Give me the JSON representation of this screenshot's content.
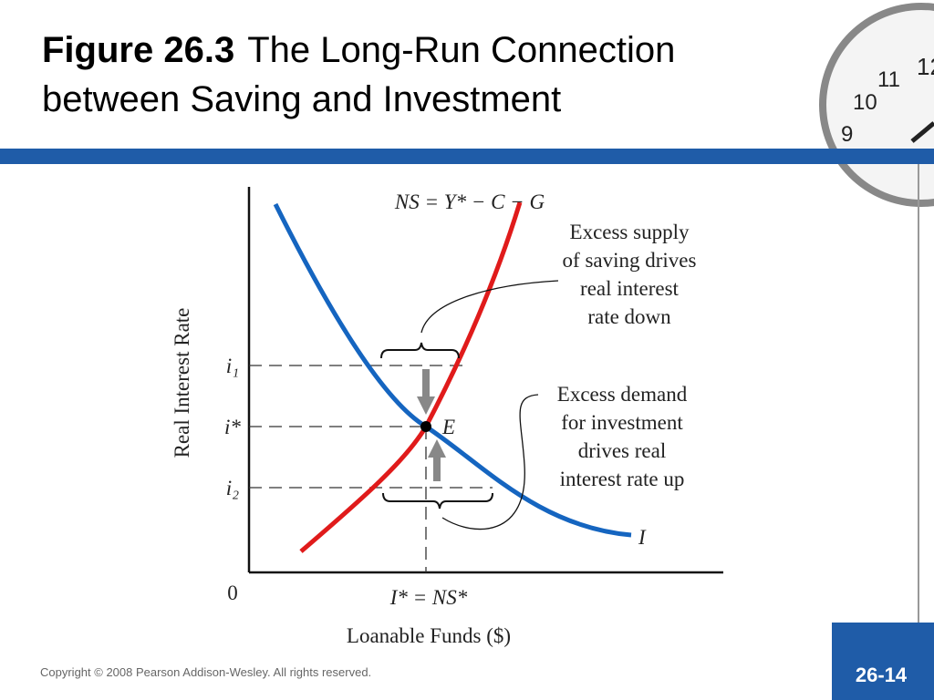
{
  "header": {
    "title_bold": "Figure 26.3",
    "title_line1": "The Long-Run Connection",
    "title_line2": "between Saving and Investment"
  },
  "diagram": {
    "y_axis_label": "Real Interest Rate",
    "x_axis_label": "Loanable Funds ($)",
    "origin": "0",
    "rate_labels": [
      "i₁",
      "i*",
      "i₂"
    ],
    "saving_curve_label": "NS = Y* − C − G",
    "investment_curve_label": "I",
    "equilibrium_label": "E",
    "quantity_label": "I* = NS*",
    "excess_supply_note": [
      "Excess supply",
      "of saving drives",
      "real interest",
      "rate down"
    ],
    "excess_demand_note": [
      "Excess demand",
      "for investment",
      "drives real",
      "interest rate up"
    ]
  },
  "footer": {
    "copyright": "Copyright © 2008 Pearson Addison-Wesley. All rights reserved.",
    "page": "26-14"
  }
}
